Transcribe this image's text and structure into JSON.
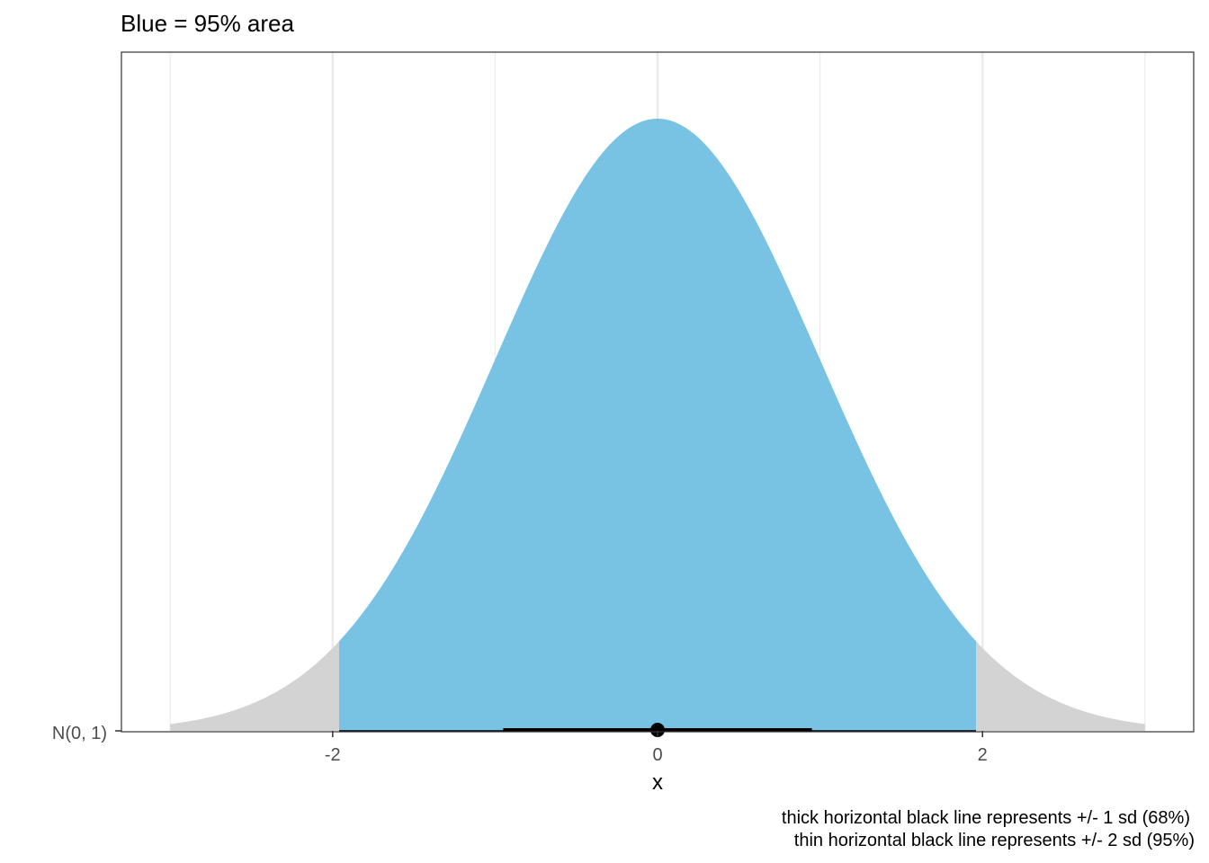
{
  "chart_data": {
    "type": "area",
    "title": "Blue = 95% area",
    "xlabel": "x",
    "ylabel": "",
    "y_category": "N(0, 1)",
    "distribution": {
      "name": "normal",
      "mean": 0,
      "sd": 1
    },
    "x_range": [
      -3.0,
      3.0
    ],
    "xlim": [
      -3.3,
      3.3
    ],
    "x_ticks": [
      -2,
      0,
      2
    ],
    "x_tick_labels": [
      "-2",
      "0",
      "2"
    ],
    "shaded_interval": [
      -1.96,
      1.96
    ],
    "shaded_area_fraction": 0.95,
    "point_estimate": 0,
    "thick_interval": [
      -0.95,
      0.95
    ],
    "thin_interval": [
      -1.96,
      1.96
    ],
    "grid": "vertical major and minor lines",
    "colors": {
      "interval_fill": "#78c2e4",
      "tail_fill": "#d3d3d3",
      "grid": "#ebebeb",
      "panel_border": "#333333",
      "interval_line": "#000000"
    },
    "caption_lines": [
      "thick horizontal black line represents +/- 1 sd (68%)",
      "thin horizontal black line represents +/- 2 sd (95%)"
    ]
  }
}
